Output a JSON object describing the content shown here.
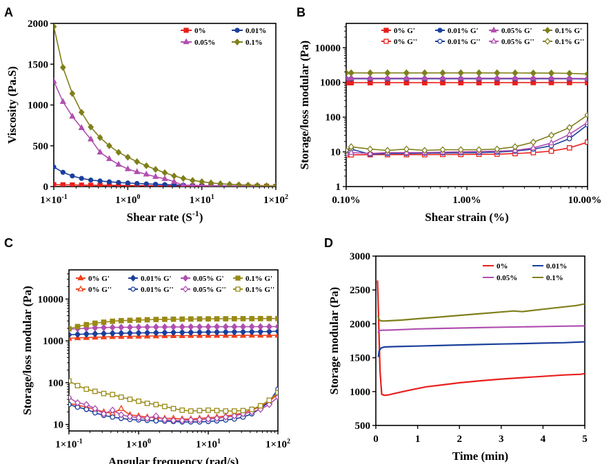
{
  "colors": {
    "s0": "#e8201c",
    "s001": "#1a3f9c",
    "s005": "#b04fb0",
    "s01": "#7f7f1b",
    "s0_c": "#f0401a",
    "s01_c": "#998a14"
  },
  "chart_data": [
    {
      "panel": "A",
      "type": "line",
      "title": "",
      "xlabel": "Shear rate (S",
      "xlabel_sup": "-1",
      "xlabel_end": ")",
      "ylabel": "Viscosity (Pa.S)",
      "xscale": "log",
      "xlim": [
        0.1,
        100
      ],
      "ylim": [
        0,
        2000
      ],
      "xticks": [
        0.1,
        1,
        10,
        100
      ],
      "xtick_labels": [
        "1×10-1",
        "1×100",
        "1×101",
        "1×102"
      ],
      "yticks": [
        0,
        500,
        1000,
        1500,
        2000
      ],
      "ytick_labels": [
        "0",
        "500",
        "1000",
        "1500",
        "2000"
      ],
      "legend": "top-right",
      "x": [
        0.1,
        0.133,
        0.178,
        0.237,
        0.316,
        0.422,
        0.562,
        0.75,
        1,
        1.33,
        1.78,
        2.37,
        3.16,
        4.22,
        5.62,
        7.5,
        10,
        13.3,
        17.8,
        23.7,
        31.6,
        42.2,
        56.2,
        75,
        100
      ],
      "series": [
        {
          "name": "0%",
          "color_key": "s0",
          "marker": "square",
          "values": [
            24,
            22,
            20,
            18,
            17,
            16,
            15,
            14,
            13,
            12,
            11,
            10,
            9,
            9,
            8,
            7,
            7,
            6,
            6,
            5,
            5,
            4,
            4,
            4,
            3
          ]
        },
        {
          "name": "0.01%",
          "color_key": "s001",
          "marker": "circle",
          "values": [
            240,
            175,
            130,
            100,
            80,
            68,
            58,
            50,
            44,
            38,
            33,
            28,
            24,
            20,
            17,
            14,
            12,
            10,
            9,
            8,
            7,
            6,
            5,
            5,
            4
          ]
        },
        {
          "name": "0.05%",
          "color_key": "s005",
          "marker": "triangle",
          "values": [
            1290,
            1040,
            860,
            720,
            580,
            420,
            340,
            270,
            215,
            180,
            150,
            120,
            95,
            60,
            15,
            15,
            12,
            10,
            9,
            8,
            7,
            6,
            5,
            5,
            4
          ]
        },
        {
          "name": "0.1%",
          "color_key": "s01",
          "marker": "diamond",
          "values": [
            1960,
            1460,
            1140,
            910,
            730,
            600,
            500,
            420,
            360,
            305,
            255,
            210,
            170,
            130,
            100,
            75,
            60,
            45,
            35,
            28,
            22,
            18,
            14,
            10,
            8
          ]
        }
      ]
    },
    {
      "panel": "B",
      "type": "line",
      "title": "",
      "xlabel": "Shear strain (%)",
      "ylabel": "Storage/loss modular (Pa)",
      "xscale": "log",
      "yscale": "log",
      "xlim": [
        0.1,
        10
      ],
      "ylim": [
        1,
        50000
      ],
      "xticks": [
        0.1,
        1,
        10
      ],
      "xtick_labels": [
        "0.10%",
        "1.00%",
        "10.00%"
      ],
      "yticks": [
        1,
        10,
        100,
        1000,
        10000
      ],
      "ytick_labels": [
        "1",
        "10",
        "100",
        "1000",
        "10000"
      ],
      "legend": "top",
      "x": [
        0.1,
        0.11,
        0.158,
        0.22,
        0.316,
        0.447,
        0.631,
        0.891,
        1.26,
        1.78,
        2.51,
        3.55,
        5.01,
        7.08,
        10
      ],
      "series": [
        {
          "name": "0% G'",
          "color_key": "s0",
          "marker": "square",
          "fill": true,
          "values": [
            980,
            980,
            980,
            980,
            980,
            980,
            980,
            980,
            980,
            980,
            980,
            990,
            990,
            990,
            985
          ]
        },
        {
          "name": "0.01% G'",
          "color_key": "s001",
          "marker": "circle",
          "fill": true,
          "values": [
            1270,
            1270,
            1270,
            1270,
            1270,
            1270,
            1270,
            1270,
            1270,
            1270,
            1270,
            1270,
            1270,
            1270,
            1250
          ]
        },
        {
          "name": "0.05% G'",
          "color_key": "s005",
          "marker": "triangle",
          "fill": true,
          "values": [
            1320,
            1320,
            1320,
            1320,
            1320,
            1320,
            1320,
            1320,
            1320,
            1320,
            1320,
            1320,
            1320,
            1310,
            1290
          ]
        },
        {
          "name": "0.1% G'",
          "color_key": "s01",
          "marker": "diamond",
          "fill": true,
          "values": [
            1880,
            1880,
            1880,
            1880,
            1880,
            1880,
            1880,
            1880,
            1880,
            1880,
            1870,
            1860,
            1850,
            1820,
            1750
          ]
        },
        {
          "name": "0% G''",
          "color_key": "s0",
          "marker": "square",
          "fill": false,
          "values": [
            8.2,
            8.2,
            8.3,
            8.3,
            8.3,
            8.3,
            8.4,
            8.4,
            8.5,
            8.6,
            8.9,
            9.5,
            10.5,
            13,
            19
          ]
        },
        {
          "name": "0.01% G''",
          "color_key": "s001",
          "marker": "circle",
          "fill": false,
          "values": [
            10,
            12,
            8.5,
            9,
            9,
            9.2,
            9.3,
            9.4,
            9.5,
            9.8,
            10.5,
            12,
            15,
            24,
            60
          ]
        },
        {
          "name": "0.05% G''",
          "color_key": "s005",
          "marker": "triangle",
          "fill": false,
          "values": [
            9,
            9.5,
            9,
            9.5,
            9.5,
            9.6,
            9.8,
            10,
            10.2,
            10.5,
            11,
            13,
            18,
            32,
            70
          ]
        },
        {
          "name": "0.1% G''",
          "color_key": "s01",
          "marker": "diamond",
          "fill": false,
          "values": [
            11,
            14,
            12,
            11,
            12,
            11,
            11.5,
            11.5,
            11.5,
            12,
            14,
            19,
            30,
            50,
            115
          ]
        }
      ]
    },
    {
      "panel": "C",
      "type": "line",
      "title": "",
      "xlabel": "Angular frequency (rad/s)",
      "ylabel": "Storage/loss modular (Pa)",
      "xscale": "log",
      "yscale": "log",
      "xlim": [
        0.1,
        100
      ],
      "ylim": [
        7,
        50000
      ],
      "xticks": [
        0.1,
        1,
        10,
        100
      ],
      "xtick_labels": [
        "1×10-1",
        "1×100",
        "1×101",
        "1×102"
      ],
      "yticks": [
        10,
        100,
        1000,
        10000
      ],
      "ytick_labels": [
        "10",
        "100",
        "1000",
        "10000"
      ],
      "legend": "top",
      "x": [
        0.1,
        0.133,
        0.178,
        0.237,
        0.316,
        0.422,
        0.562,
        0.75,
        1,
        1.33,
        1.78,
        2.37,
        3.16,
        4.22,
        5.62,
        7.5,
        10,
        13.3,
        17.8,
        23.7,
        31.6,
        42.2,
        56.2,
        75,
        100
      ],
      "series": [
        {
          "name": "0% G'",
          "color_key": "s0_c",
          "marker": "triangle",
          "fill": true,
          "values": [
            1150,
            1180,
            1200,
            1220,
            1240,
            1260,
            1270,
            1280,
            1290,
            1300,
            1310,
            1320,
            1330,
            1330,
            1340,
            1340,
            1350,
            1350,
            1350,
            1350,
            1350,
            1360,
            1360,
            1360,
            1360
          ]
        },
        {
          "name": "0.01% G'",
          "color_key": "s001",
          "marker": "diamond",
          "fill": true,
          "values": [
            1400,
            1430,
            1460,
            1480,
            1500,
            1520,
            1530,
            1540,
            1550,
            1560,
            1570,
            1580,
            1590,
            1600,
            1600,
            1610,
            1620,
            1620,
            1630,
            1640,
            1640,
            1650,
            1660,
            1670,
            1700
          ]
        },
        {
          "name": "0.05% G'",
          "color_key": "s005",
          "marker": "diamond",
          "fill": true,
          "values": [
            1900,
            1950,
            2000,
            2050,
            2080,
            2100,
            2110,
            2120,
            2130,
            2140,
            2150,
            2150,
            2160,
            2160,
            2170,
            2170,
            2170,
            2180,
            2180,
            2180,
            2180,
            2190,
            2190,
            2190,
            2200
          ]
        },
        {
          "name": "0.1% G'",
          "color_key": "s01_c",
          "marker": "square",
          "fill": true,
          "values": [
            1950,
            2200,
            2450,
            2650,
            2800,
            2950,
            3050,
            3100,
            3150,
            3200,
            3250,
            3280,
            3300,
            3320,
            3340,
            3350,
            3360,
            3370,
            3380,
            3390,
            3400,
            3400,
            3410,
            3420,
            3420
          ]
        },
        {
          "name": "0% G''",
          "color_key": "s0_c",
          "marker": "triangle",
          "fill": false,
          "values": [
            32,
            29,
            26,
            23,
            20,
            18.5,
            24,
            17,
            16,
            15,
            14.5,
            14,
            14,
            13.5,
            13.5,
            14,
            14.5,
            15,
            16,
            17,
            19,
            22,
            27,
            35,
            55
          ]
        },
        {
          "name": "0.01% G''",
          "color_key": "s001",
          "marker": "circle",
          "fill": false,
          "values": [
            30,
            26,
            23,
            19,
            16.5,
            15,
            14,
            13.2,
            12.8,
            12.5,
            12.2,
            12,
            11.8,
            11.5,
            11.5,
            11.5,
            11.8,
            12.2,
            12.8,
            13.5,
            15,
            18,
            24,
            35,
            70
          ]
        },
        {
          "name": "0.05% G''",
          "color_key": "s005",
          "marker": "diamond",
          "fill": false,
          "values": [
            44,
            33,
            30,
            24,
            18,
            22,
            17,
            15.5,
            14.5,
            14,
            16,
            13,
            12.5,
            12.5,
            12.8,
            13,
            13.5,
            14,
            15,
            16,
            18,
            20,
            23,
            30,
            45
          ]
        },
        {
          "name": "0.1% G''",
          "color_key": "s01_c",
          "marker": "square",
          "fill": false,
          "values": [
            110,
            85,
            70,
            62,
            55,
            52,
            45,
            40,
            36,
            32,
            30,
            27,
            24,
            22,
            21,
            21.5,
            22,
            21.5,
            21,
            21,
            21.5,
            23,
            28,
            38,
            58
          ]
        }
      ]
    },
    {
      "panel": "D",
      "type": "line",
      "title": "",
      "xlabel": "Time (min)",
      "ylabel": "Storage modular (Pa)",
      "xlim": [
        0,
        5
      ],
      "ylim": [
        500,
        3000
      ],
      "xticks": [
        0,
        1,
        2,
        3,
        4,
        5
      ],
      "xtick_labels": [
        "0",
        "1",
        "2",
        "3",
        "4",
        "5"
      ],
      "yticks": [
        500,
        1000,
        1500,
        2000,
        2500,
        3000
      ],
      "ytick_labels": [
        "500",
        "1000",
        "1500",
        "2000",
        "2500",
        "3000"
      ],
      "legend": "top-right",
      "series": [
        {
          "name": "0%",
          "color_key": "s0",
          "x": [
            0.04,
            0.07,
            0.1,
            0.14,
            0.2,
            0.3,
            0.5,
            0.8,
            1.2,
            1.6,
            2,
            2.5,
            3,
            3.5,
            4,
            4.5,
            4.9,
            5
          ],
          "values": [
            2640,
            2000,
            1300,
            960,
            945,
            950,
            980,
            1020,
            1070,
            1100,
            1130,
            1160,
            1185,
            1205,
            1225,
            1245,
            1255,
            1265
          ]
        },
        {
          "name": "0.01%",
          "color_key": "s001",
          "x": [
            0.06,
            0.08,
            0.12,
            0.18,
            0.25,
            0.5,
            1,
            1.5,
            2,
            2.5,
            3,
            3.5,
            4,
            4.5,
            5
          ],
          "values": [
            1510,
            1600,
            1640,
            1655,
            1660,
            1665,
            1672,
            1680,
            1688,
            1695,
            1702,
            1708,
            1715,
            1722,
            1735
          ]
        },
        {
          "name": "0.05%",
          "color_key": "s005",
          "x": [
            0.05,
            0.08,
            0.15,
            0.3,
            0.6,
            1,
            1.5,
            2,
            2.5,
            3,
            3.5,
            4,
            4.5,
            5
          ],
          "values": [
            1870,
            1900,
            1905,
            1908,
            1915,
            1925,
            1932,
            1938,
            1944,
            1950,
            1955,
            1960,
            1965,
            1970
          ]
        },
        {
          "name": "0.1%",
          "color_key": "s01",
          "x": [
            0.05,
            0.08,
            0.12,
            0.18,
            0.3,
            0.6,
            1,
            1.5,
            2,
            2.5,
            3,
            3.3,
            3.5,
            4,
            4.5,
            4.8,
            5
          ],
          "values": [
            2120,
            2060,
            2045,
            2042,
            2045,
            2055,
            2075,
            2100,
            2125,
            2150,
            2175,
            2190,
            2180,
            2215,
            2250,
            2270,
            2295
          ]
        }
      ]
    }
  ]
}
